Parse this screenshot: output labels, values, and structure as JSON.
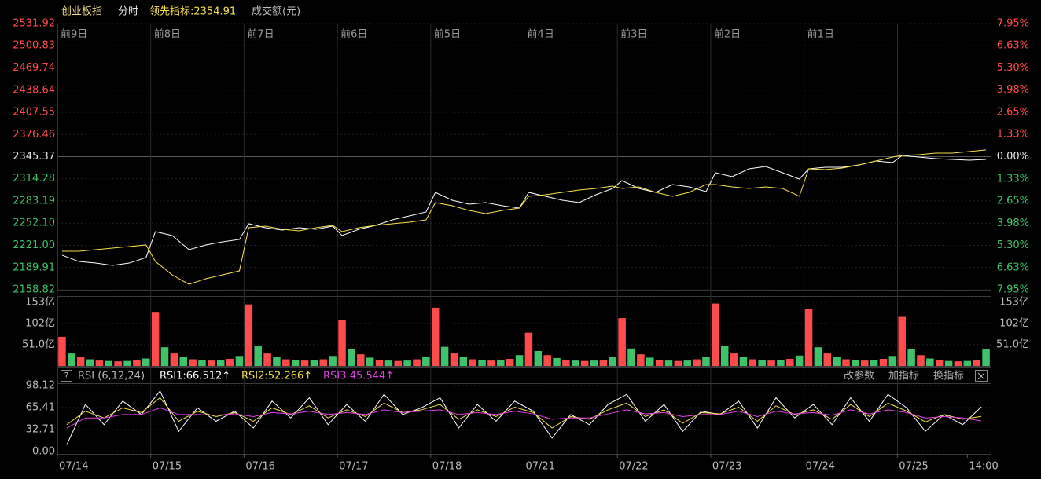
{
  "chart_data": [
    {
      "type": "line",
      "header": [
        "创业板指",
        "分时",
        "领先指标:2354.91",
        "成交额(元)"
      ],
      "x": [
        0.05,
        0.23,
        0.41,
        0.59,
        0.77,
        0.95,
        1.05,
        1.23,
        1.41,
        1.59,
        1.77,
        1.95,
        2.05,
        2.23,
        2.41,
        2.59,
        2.77,
        2.95,
        3.05,
        3.23,
        3.41,
        3.59,
        3.77,
        3.95,
        4.05,
        4.23,
        4.41,
        4.59,
        4.77,
        4.95,
        5.05,
        5.23,
        5.41,
        5.59,
        5.77,
        5.95,
        6.05,
        6.23,
        6.41,
        6.59,
        6.77,
        6.95,
        7.05,
        7.23,
        7.41,
        7.59,
        7.77,
        7.95,
        8.05,
        8.23,
        8.41,
        8.59,
        8.77,
        8.95,
        9.05,
        9.23,
        9.41,
        9.59,
        9.77,
        9.95
      ],
      "series": [
        {
          "color": "#ffffff",
          "values": [
            2207.3,
            2198.4,
            2196.2,
            2192.9,
            2196.2,
            2204.0,
            2240.3,
            2234.8,
            2215.0,
            2221.6,
            2226.0,
            2229.3,
            2251.3,
            2245.8,
            2242.5,
            2245.8,
            2243.6,
            2248.0,
            2234.8,
            2243.6,
            2249.1,
            2256.8,
            2262.3,
            2267.8,
            2295.3,
            2284.3,
            2278.8,
            2281.0,
            2276.6,
            2273.3,
            2295.3,
            2289.8,
            2284.3,
            2281.0,
            2292.0,
            2300.8,
            2311.8,
            2300.8,
            2295.3,
            2306.3,
            2303.0,
            2296.4,
            2322.8,
            2317.3,
            2328.3,
            2331.6,
            2322.8,
            2314.0,
            2328.3,
            2330.5,
            2330.5,
            2333.8,
            2339.3,
            2337.1,
            2347.0,
            2344.8,
            2342.6,
            2341.5,
            2340.4,
            2341.5
          ]
        },
        {
          "color": "#f5e14a",
          "values": [
            2212.8,
            2212.8,
            2215.0,
            2217.2,
            2219.4,
            2221.6,
            2198.4,
            2179.7,
            2166.5,
            2174.2,
            2179.7,
            2185.2,
            2245.8,
            2248.0,
            2243.6,
            2241.4,
            2245.8,
            2249.1,
            2240.3,
            2245.8,
            2249.1,
            2251.3,
            2253.5,
            2256.8,
            2281.0,
            2276.6,
            2270.0,
            2265.6,
            2270.0,
            2273.3,
            2289.8,
            2292.0,
            2295.3,
            2298.6,
            2300.8,
            2304.1,
            2300.8,
            2303.0,
            2295.3,
            2289.8,
            2295.3,
            2306.3,
            2306.3,
            2303.0,
            2300.8,
            2303.0,
            2300.8,
            2289.8,
            2328.3,
            2327.2,
            2329.4,
            2333.8,
            2339.3,
            2344.8,
            2347.0,
            2348.1,
            2350.3,
            2350.3,
            2352.5,
            2354.91
          ]
        }
      ],
      "xlim": [
        0,
        10
      ],
      "xticks": [
        {
          "value": 0,
          "label": "前9日"
        },
        {
          "value": 1,
          "label": "前8日"
        },
        {
          "value": 2,
          "label": "前7日"
        },
        {
          "value": 3,
          "label": "前6日"
        },
        {
          "value": 4,
          "label": "前5日"
        },
        {
          "value": 5,
          "label": "前4日"
        },
        {
          "value": 6,
          "label": "前3日"
        },
        {
          "value": 7,
          "label": "前2日"
        },
        {
          "value": 8,
          "label": "前1日"
        }
      ],
      "ylim": [
        2158.82,
        2531.92
      ],
      "yticks": [
        2158.82,
        2189.91,
        {
          "value": 2221,
          "label": "2221.00"
        },
        {
          "value": 2252.1,
          "label": "2252.10"
        },
        2283.19,
        2314.28,
        2345.37,
        2376.46,
        2407.55,
        2438.64,
        2469.74,
        2500.83,
        2531.92
      ],
      "baseline": 2345.37,
      "y2lim": [
        -7.95,
        7.95
      ],
      "y2ticks": [
        {
          "value": -7.95,
          "label": "7.95%"
        },
        {
          "value": -6.63,
          "label": "6.63%"
        },
        {
          "value": -5.3,
          "label": "5.30%"
        },
        {
          "value": -3.98,
          "label": "3.98%"
        },
        {
          "value": -2.65,
          "label": "2.65%"
        },
        {
          "value": -1.33,
          "label": "1.33%"
        },
        {
          "value": 0,
          "label": "0.00%"
        },
        {
          "value": 1.33,
          "label": "1.33%"
        },
        {
          "value": 2.65,
          "label": "2.65%"
        },
        {
          "value": 3.98,
          "label": "3.98%"
        },
        {
          "value": 5.3,
          "label": "5.30%"
        },
        {
          "value": 6.63,
          "label": "6.63%"
        },
        {
          "value": 7.95,
          "label": "7.95%"
        }
      ],
      "up_color": "#ff4b4b",
      "down_color": "#3ec36a",
      "flat_color": "#e6e6e6",
      "grid": true
    },
    {
      "type": "bar",
      "x": [
        0.05,
        0.15,
        0.25,
        0.35,
        0.45,
        0.55,
        0.65,
        0.75,
        0.85,
        0.95,
        1.05,
        1.15,
        1.25,
        1.35,
        1.45,
        1.55,
        1.65,
        1.75,
        1.85,
        1.95,
        2.05,
        2.15,
        2.25,
        2.35,
        2.45,
        2.55,
        2.65,
        2.75,
        2.85,
        2.95,
        3.05,
        3.15,
        3.25,
        3.35,
        3.45,
        3.55,
        3.65,
        3.75,
        3.85,
        3.95,
        4.05,
        4.15,
        4.25,
        4.35,
        4.45,
        4.55,
        4.65,
        4.75,
        4.85,
        4.95,
        5.05,
        5.15,
        5.25,
        5.35,
        5.45,
        5.55,
        5.65,
        5.75,
        5.85,
        5.95,
        6.05,
        6.15,
        6.25,
        6.35,
        6.45,
        6.55,
        6.65,
        6.75,
        6.85,
        6.95,
        7.05,
        7.15,
        7.25,
        7.35,
        7.45,
        7.55,
        7.65,
        7.75,
        7.85,
        7.95,
        8.05,
        8.15,
        8.25,
        8.35,
        8.45,
        8.55,
        8.65,
        8.75,
        8.85,
        8.95,
        9.05,
        9.15,
        9.25,
        9.35,
        9.45,
        9.55,
        9.65,
        9.75,
        9.85,
        9.95
      ],
      "values": [
        70,
        30,
        22,
        16,
        13,
        12,
        11,
        12,
        14,
        18,
        130,
        45,
        30,
        22,
        16,
        14,
        13,
        14,
        17,
        24,
        148,
        48,
        30,
        22,
        16,
        14,
        13,
        14,
        16,
        24,
        110,
        40,
        28,
        20,
        15,
        13,
        12,
        13,
        16,
        22,
        140,
        46,
        30,
        22,
        16,
        14,
        13,
        14,
        17,
        26,
        80,
        36,
        26,
        19,
        15,
        13,
        12,
        13,
        15,
        21,
        115,
        42,
        28,
        20,
        15,
        13,
        12,
        13,
        16,
        22,
        150,
        48,
        30,
        22,
        16,
        14,
        13,
        14,
        17,
        25,
        138,
        45,
        30,
        21,
        16,
        14,
        13,
        14,
        17,
        24,
        118,
        40,
        26,
        18,
        14,
        12,
        11,
        12,
        14,
        40
      ],
      "colors": [
        "#ff4b4b",
        "#3ec36a"
      ],
      "xlim": [
        0,
        10
      ],
      "ylim": [
        0,
        153
      ],
      "yticks": [
        {
          "value": 51,
          "label": "51.0亿"
        },
        {
          "value": 102,
          "label": "102亿"
        },
        {
          "value": 153,
          "label": "153亿"
        }
      ]
    },
    {
      "type": "line",
      "title": "RSI (6,12,24)",
      "buttons": [
        "改参数",
        "加指标",
        "换指标"
      ],
      "x": [
        0.1,
        0.3,
        0.5,
        0.7,
        0.9,
        1.1,
        1.3,
        1.5,
        1.7,
        1.9,
        2.1,
        2.3,
        2.5,
        2.7,
        2.9,
        3.1,
        3.3,
        3.5,
        3.7,
        3.9,
        4.1,
        4.3,
        4.5,
        4.7,
        4.9,
        5.1,
        5.3,
        5.5,
        5.7,
        5.9,
        6.1,
        6.3,
        6.5,
        6.7,
        6.9,
        7.1,
        7.3,
        7.5,
        7.7,
        7.9,
        8.1,
        8.3,
        8.5,
        8.7,
        8.9,
        9.1,
        9.3,
        9.5,
        9.7,
        9.9
      ],
      "series": [
        {
          "name": "RSI1:66.512↑",
          "color": "#ffffff",
          "values": [
            10,
            70,
            40,
            75,
            55,
            90,
            30,
            65,
            45,
            60,
            35,
            75,
            50,
            80,
            40,
            70,
            45,
            85,
            55,
            65,
            80,
            35,
            70,
            45,
            75,
            60,
            20,
            55,
            40,
            70,
            85,
            45,
            70,
            30,
            60,
            55,
            75,
            35,
            80,
            50,
            70,
            40,
            80,
            45,
            85,
            65,
            30,
            55,
            40,
            66.512
          ]
        },
        {
          "name": "RSI2:52.266↑",
          "color": "#f5e14a",
          "values": [
            40,
            60,
            50,
            65,
            58,
            80,
            45,
            60,
            52,
            58,
            45,
            65,
            55,
            68,
            50,
            62,
            52,
            72,
            58,
            62,
            70,
            48,
            62,
            52,
            66,
            58,
            35,
            52,
            48,
            62,
            72,
            52,
            62,
            42,
            58,
            56,
            66,
            45,
            68,
            55,
            62,
            48,
            70,
            52,
            72,
            60,
            44,
            55,
            48,
            52.266
          ]
        },
        {
          "name": "RSI3:45.544↑",
          "color": "#e040e0",
          "values": [
            35,
            50,
            50,
            55,
            55,
            65,
            55,
            55,
            54,
            56,
            52,
            58,
            56,
            60,
            55,
            58,
            55,
            62,
            58,
            60,
            62,
            55,
            58,
            55,
            60,
            56,
            48,
            50,
            50,
            56,
            62,
            56,
            58,
            52,
            55,
            55,
            60,
            52,
            60,
            56,
            58,
            54,
            62,
            56,
            62,
            58,
            50,
            52,
            50,
            45.544
          ]
        }
      ],
      "xlim": [
        0,
        10
      ],
      "xticks": [
        {
          "value": 0,
          "label": "07/14"
        },
        {
          "value": 1,
          "label": "07/15"
        },
        {
          "value": 2,
          "label": "07/16"
        },
        {
          "value": 3,
          "label": "07/17"
        },
        {
          "value": 4,
          "label": "07/18"
        },
        {
          "value": 5,
          "label": "07/21"
        },
        {
          "value": 6,
          "label": "07/22"
        },
        {
          "value": 7,
          "label": "07/23"
        },
        {
          "value": 8,
          "label": "07/24"
        },
        {
          "value": 9,
          "label": "07/25"
        },
        {
          "value": 9.75,
          "label": "14:00"
        }
      ],
      "ylim": [
        0,
        98.12
      ],
      "yticks": [
        {
          "value": 0,
          "label": "0.00"
        },
        32.71,
        65.41,
        98.12
      ]
    }
  ]
}
